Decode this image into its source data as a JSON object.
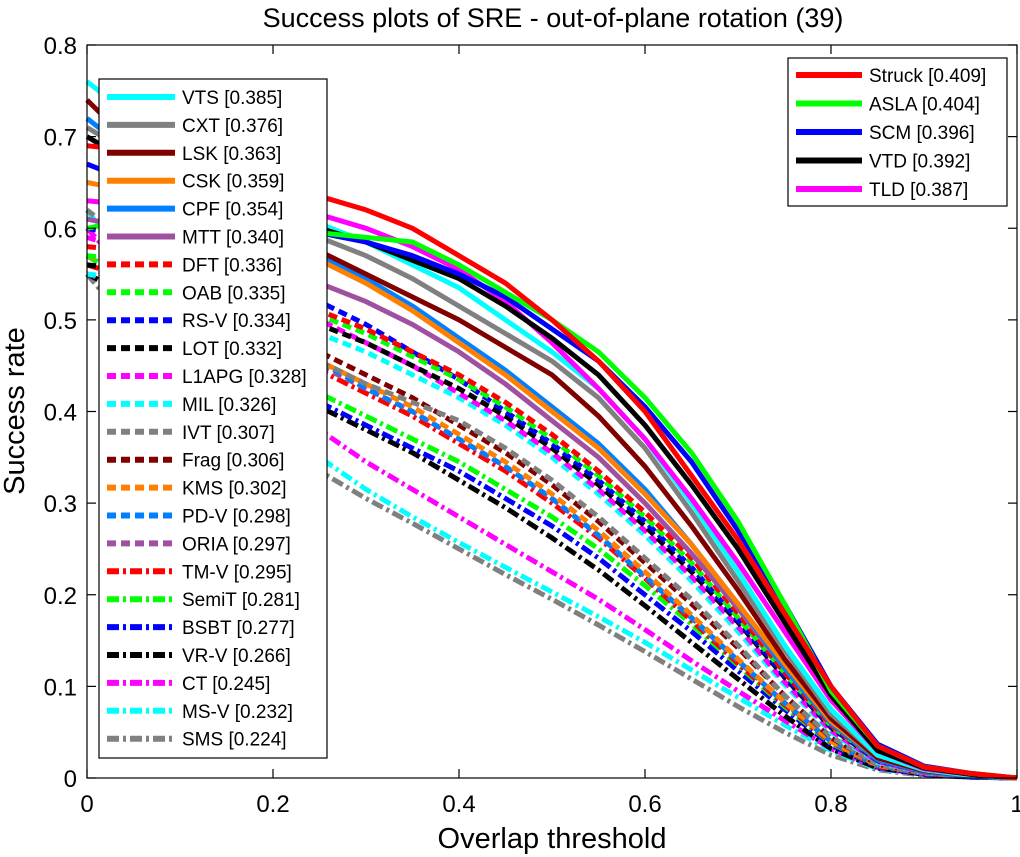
{
  "chart_data": {
    "type": "line",
    "title": "Success plots of SRE - out-of-plane rotation (39)",
    "xlabel": "Overlap threshold",
    "ylabel": "Success rate",
    "xlim": [
      0,
      1
    ],
    "ylim": [
      0,
      0.8
    ],
    "x_ticks": [
      "0",
      "0.2",
      "0.4",
      "0.6",
      "0.8",
      "1"
    ],
    "y_ticks": [
      "0",
      "0.1",
      "0.2",
      "0.3",
      "0.4",
      "0.5",
      "0.6",
      "0.7",
      "0.8"
    ],
    "grid": false,
    "x": [
      0,
      0.05,
      0.1,
      0.15,
      0.2,
      0.25,
      0.3,
      0.35,
      0.4,
      0.45,
      0.5,
      0.55,
      0.6,
      0.65,
      0.7,
      0.75,
      0.8,
      0.85,
      0.9,
      0.95,
      1.0
    ],
    "legends": [
      {
        "position": "upper-right",
        "entries": [
          {
            "name": "Struck [0.409]",
            "color": "#ff0000",
            "style": "solid",
            "values": [
              0.69,
              0.685,
              0.675,
              0.665,
              0.65,
              0.635,
              0.62,
              0.6,
              0.57,
              0.54,
              0.5,
              0.455,
              0.4,
              0.33,
              0.26,
              0.18,
              0.1,
              0.035,
              0.012,
              0.005,
              0
            ]
          },
          {
            "name": "ASLA [0.404]",
            "color": "#00ff00",
            "style": "solid",
            "values": [
              0.6,
              0.61,
              0.61,
              0.605,
              0.6,
              0.595,
              0.59,
              0.585,
              0.56,
              0.53,
              0.5,
              0.465,
              0.415,
              0.355,
              0.28,
              0.19,
              0.095,
              0.035,
              0.012,
              0.005,
              0
            ]
          },
          {
            "name": "SCM [0.396]",
            "color": "#0000ff",
            "style": "solid",
            "values": [
              0.67,
              0.65,
              0.63,
              0.615,
              0.605,
              0.595,
              0.585,
              0.57,
              0.55,
              0.525,
              0.49,
              0.455,
              0.405,
              0.345,
              0.27,
              0.19,
              0.1,
              0.037,
              0.013,
              0.005,
              0
            ]
          },
          {
            "name": "VTD [0.392]",
            "color": "#000000",
            "style": "solid",
            "values": [
              0.7,
              0.67,
              0.645,
              0.625,
              0.615,
              0.6,
              0.585,
              0.565,
              0.545,
              0.515,
              0.48,
              0.44,
              0.385,
              0.32,
              0.25,
              0.17,
              0.09,
              0.03,
              0.011,
              0.004,
              0
            ]
          },
          {
            "name": "TLD [0.387]",
            "color": "#ff00ff",
            "style": "solid",
            "values": [
              0.63,
              0.625,
              0.625,
              0.62,
              0.62,
              0.615,
              0.6,
              0.58,
              0.555,
              0.52,
              0.475,
              0.425,
              0.37,
              0.305,
              0.235,
              0.16,
              0.085,
              0.03,
              0.01,
              0.004,
              0
            ]
          }
        ]
      },
      {
        "position": "upper-left",
        "entries": [
          {
            "name": "VTS [0.385]",
            "color": "#00ffff",
            "style": "solid",
            "values": [
              0.76,
              0.72,
              0.68,
              0.65,
              0.625,
              0.605,
              0.585,
              0.56,
              0.535,
              0.5,
              0.465,
              0.425,
              0.37,
              0.3,
              0.225,
              0.145,
              0.075,
              0.025,
              0.009,
              0.003,
              0
            ]
          },
          {
            "name": "CXT [0.376]",
            "color": "#808080",
            "style": "solid",
            "values": [
              0.71,
              0.68,
              0.655,
              0.63,
              0.61,
              0.59,
              0.57,
              0.545,
              0.515,
              0.485,
              0.455,
              0.415,
              0.36,
              0.29,
              0.215,
              0.14,
              0.07,
              0.025,
              0.009,
              0.003,
              0
            ]
          },
          {
            "name": "LSK [0.363]",
            "color": "#800000",
            "style": "solid",
            "values": [
              0.74,
              0.69,
              0.65,
              0.62,
              0.6,
              0.575,
              0.55,
              0.525,
              0.5,
              0.47,
              0.44,
              0.395,
              0.34,
              0.275,
              0.205,
              0.13,
              0.065,
              0.022,
              0.008,
              0.003,
              0
            ]
          },
          {
            "name": "CSK [0.359]",
            "color": "#ff8000",
            "style": "solid",
            "values": [
              0.65,
              0.64,
              0.625,
              0.6,
              0.585,
              0.565,
              0.54,
              0.51,
              0.475,
              0.44,
              0.4,
              0.36,
              0.31,
              0.255,
              0.19,
              0.125,
              0.062,
              0.022,
              0.008,
              0.003,
              0
            ]
          },
          {
            "name": "CPF [0.354]",
            "color": "#0080ff",
            "style": "solid",
            "values": [
              0.72,
              0.68,
              0.645,
              0.615,
              0.595,
              0.57,
              0.545,
              0.515,
              0.48,
              0.445,
              0.405,
              0.365,
              0.315,
              0.255,
              0.19,
              0.12,
              0.06,
              0.02,
              0.007,
              0.002,
              0
            ]
          },
          {
            "name": "MTT [0.340]",
            "color": "#a050a0",
            "style": "solid",
            "values": [
              0.61,
              0.6,
              0.59,
              0.575,
              0.56,
              0.54,
              0.52,
              0.495,
              0.465,
              0.43,
              0.39,
              0.35,
              0.3,
              0.245,
              0.185,
              0.12,
              0.06,
              0.02,
              0.007,
              0.002,
              0
            ]
          },
          {
            "name": "DFT [0.336]",
            "color": "#ff0000",
            "style": "dashed",
            "values": [
              0.58,
              0.575,
              0.56,
              0.545,
              0.53,
              0.51,
              0.49,
              0.465,
              0.44,
              0.41,
              0.375,
              0.335,
              0.29,
              0.24,
              0.18,
              0.115,
              0.058,
              0.02,
              0.007,
              0.002,
              0
            ]
          },
          {
            "name": "OAB [0.335]",
            "color": "#00ff00",
            "style": "dashed",
            "values": [
              0.57,
              0.565,
              0.555,
              0.54,
              0.525,
              0.505,
              0.485,
              0.46,
              0.435,
              0.405,
              0.37,
              0.33,
              0.285,
              0.235,
              0.175,
              0.115,
              0.057,
              0.02,
              0.007,
              0.002,
              0
            ]
          },
          {
            "name": "RS-V [0.334]",
            "color": "#0000ff",
            "style": "dashed",
            "values": [
              0.6,
              0.59,
              0.575,
              0.56,
              0.545,
              0.52,
              0.495,
              0.465,
              0.435,
              0.4,
              0.365,
              0.325,
              0.28,
              0.23,
              0.172,
              0.112,
              0.056,
              0.019,
              0.007,
              0.002,
              0
            ]
          },
          {
            "name": "LOT [0.332]",
            "color": "#000000",
            "style": "dashed",
            "values": [
              0.56,
              0.555,
              0.545,
              0.53,
              0.515,
              0.495,
              0.475,
              0.45,
              0.425,
              0.395,
              0.36,
              0.32,
              0.275,
              0.225,
              0.17,
              0.11,
              0.055,
              0.019,
              0.007,
              0.002,
              0
            ]
          },
          {
            "name": "L1APG [0.328]",
            "color": "#ff00ff",
            "style": "dashed",
            "values": [
              0.59,
              0.575,
              0.56,
              0.54,
              0.52,
              0.5,
              0.475,
              0.45,
              0.42,
              0.39,
              0.355,
              0.315,
              0.27,
              0.22,
              0.165,
              0.105,
              0.052,
              0.018,
              0.006,
              0.002,
              0
            ]
          },
          {
            "name": "MIL [0.326]",
            "color": "#00ffff",
            "style": "dashed",
            "values": [
              0.55,
              0.545,
              0.535,
              0.52,
              0.505,
              0.485,
              0.465,
              0.44,
              0.415,
              0.385,
              0.35,
              0.31,
              0.265,
              0.215,
              0.16,
              0.102,
              0.05,
              0.017,
              0.006,
              0.002,
              0
            ]
          },
          {
            "name": "IVT [0.307]",
            "color": "#808080",
            "style": "dashed",
            "values": [
              0.62,
              0.58,
              0.545,
              0.51,
              0.48,
              0.455,
              0.43,
              0.41,
              0.39,
              0.36,
              0.325,
              0.285,
              0.24,
              0.195,
              0.145,
              0.09,
              0.045,
              0.015,
              0.005,
              0.002,
              0
            ]
          },
          {
            "name": "Frag [0.306]",
            "color": "#800000",
            "style": "dashed",
            "values": [
              0.56,
              0.55,
              0.535,
              0.515,
              0.49,
              0.465,
              0.44,
              0.415,
              0.385,
              0.355,
              0.32,
              0.28,
              0.235,
              0.19,
              0.142,
              0.09,
              0.044,
              0.015,
              0.005,
              0.002,
              0
            ]
          },
          {
            "name": "KMS [0.302]",
            "color": "#ff8000",
            "style": "dashed",
            "values": [
              0.57,
              0.555,
              0.535,
              0.51,
              0.485,
              0.455,
              0.43,
              0.405,
              0.375,
              0.345,
              0.31,
              0.27,
              0.225,
              0.178,
              0.13,
              0.083,
              0.04,
              0.014,
              0.005,
              0.002,
              0
            ]
          },
          {
            "name": "PD-V [0.298]",
            "color": "#0080ff",
            "style": "dashed",
            "values": [
              0.55,
              0.54,
              0.525,
              0.505,
              0.48,
              0.455,
              0.425,
              0.4,
              0.37,
              0.34,
              0.305,
              0.265,
              0.22,
              0.175,
              0.128,
              0.082,
              0.04,
              0.014,
              0.005,
              0.002,
              0
            ]
          },
          {
            "name": "ORIA [0.297]",
            "color": "#a050a0",
            "style": "dashed",
            "values": [
              0.55,
              0.535,
              0.52,
              0.5,
              0.475,
              0.45,
              0.425,
              0.4,
              0.37,
              0.34,
              0.305,
              0.265,
              0.22,
              0.175,
              0.128,
              0.082,
              0.04,
              0.014,
              0.005,
              0.002,
              0
            ]
          },
          {
            "name": "TM-V [0.295]",
            "color": "#ff0000",
            "style": "dashdot",
            "values": [
              0.56,
              0.545,
              0.525,
              0.5,
              0.47,
              0.445,
              0.42,
              0.395,
              0.365,
              0.335,
              0.3,
              0.262,
              0.218,
              0.172,
              0.125,
              0.08,
              0.039,
              0.013,
              0.005,
              0.002,
              0
            ]
          },
          {
            "name": "SemiT [0.281]",
            "color": "#00ff00",
            "style": "dashdot",
            "values": [
              0.57,
              0.54,
              0.51,
              0.475,
              0.445,
              0.42,
              0.395,
              0.37,
              0.345,
              0.315,
              0.285,
              0.25,
              0.21,
              0.168,
              0.123,
              0.078,
              0.038,
              0.013,
              0.005,
              0.002,
              0
            ]
          },
          {
            "name": "BSBT [0.277]",
            "color": "#0000ff",
            "style": "dashdot",
            "values": [
              0.57,
              0.54,
              0.505,
              0.47,
              0.44,
              0.41,
              0.385,
              0.36,
              0.335,
              0.305,
              0.275,
              0.24,
              0.2,
              0.16,
              0.117,
              0.075,
              0.036,
              0.012,
              0.004,
              0.001,
              0
            ]
          },
          {
            "name": "VR-V [0.266]",
            "color": "#000000",
            "style": "dashdot",
            "values": [
              0.55,
              0.525,
              0.495,
              0.46,
              0.43,
              0.405,
              0.38,
              0.355,
              0.325,
              0.295,
              0.262,
              0.227,
              0.188,
              0.148,
              0.108,
              0.068,
              0.032,
              0.011,
              0.004,
              0.001,
              0
            ]
          },
          {
            "name": "CT [0.245]",
            "color": "#ff00ff",
            "style": "dashdot",
            "values": [
              0.6,
              0.545,
              0.495,
              0.45,
              0.415,
              0.38,
              0.345,
              0.315,
              0.285,
              0.255,
              0.225,
              0.195,
              0.162,
              0.128,
              0.095,
              0.063,
              0.032,
              0.011,
              0.004,
              0.001,
              0
            ]
          },
          {
            "name": "MS-V [0.232]",
            "color": "#00ffff",
            "style": "dashdot",
            "values": [
              0.62,
              0.55,
              0.49,
              0.435,
              0.39,
              0.35,
              0.315,
              0.285,
              0.257,
              0.23,
              0.203,
              0.176,
              0.148,
              0.118,
              0.088,
              0.058,
              0.03,
              0.01,
              0.004,
              0.001,
              0
            ]
          },
          {
            "name": "SMS [0.224]",
            "color": "#808080",
            "style": "dashdot",
            "values": [
              0.55,
              0.49,
              0.44,
              0.4,
              0.365,
              0.335,
              0.305,
              0.278,
              0.25,
              0.222,
              0.195,
              0.167,
              0.138,
              0.108,
              0.078,
              0.05,
              0.025,
              0.009,
              0.003,
              0.001,
              0
            ]
          }
        ]
      }
    ]
  }
}
